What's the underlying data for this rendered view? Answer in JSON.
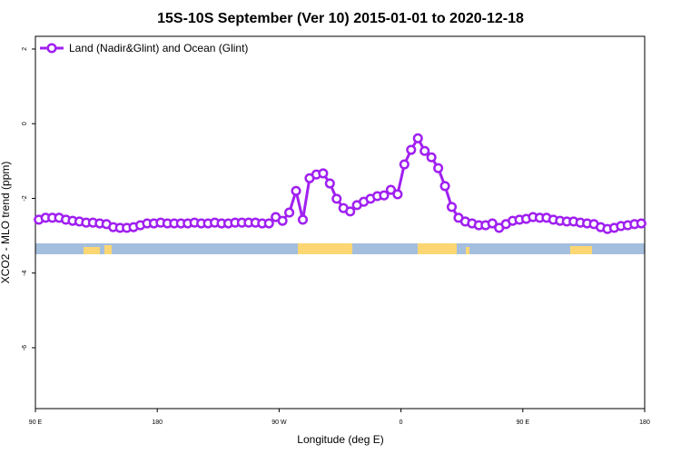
{
  "chart_data": {
    "type": "line",
    "title": "15S-10S September (Ver 10)   2015-01-01 to 2020-12-18",
    "x_label": "Longitude (deg E)",
    "y_label": "XCO2 - MLO trend (ppm)",
    "x": [
      92.5,
      97.5,
      102.5,
      107.5,
      112.5,
      117.5,
      122.5,
      127.5,
      132.5,
      137.5,
      142.5,
      147.5,
      152.5,
      157.5,
      162.5,
      167.5,
      172.5,
      177.5,
      182.5,
      187.5,
      192.5,
      197.5,
      202.5,
      207.5,
      212.5,
      217.5,
      222.5,
      227.5,
      232.5,
      237.5,
      242.5,
      247.5,
      252.5,
      257.5,
      262.5,
      267.5,
      272.5,
      277.5,
      282.5,
      287.5,
      292.5,
      297.5,
      302.5,
      307.5,
      312.5,
      317.5,
      322.5,
      327.5,
      332.5,
      337.5,
      342.5,
      347.5,
      352.5,
      357.5,
      362.5,
      367.5,
      372.5,
      377.5,
      382.5,
      387.5,
      392.5,
      397.5,
      402.5,
      407.5,
      412.5,
      417.5,
      422.5,
      427.5,
      432.5,
      437.5,
      442.5,
      447.5,
      452.5,
      457.5,
      462.5,
      467.5,
      472.5,
      477.5,
      482.5,
      487.5,
      492.5,
      497.5,
      502.5,
      507.5,
      512.5,
      517.5,
      522.5,
      527.5,
      532.5,
      537.5
    ],
    "series": [
      {
        "name": "Land (Nadir&Glint) and Ocean (Glint)",
        "color": "#a020f0",
        "values": [
          -2.57,
          -2.52,
          -2.52,
          -2.52,
          -2.57,
          -2.6,
          -2.62,
          -2.65,
          -2.65,
          -2.67,
          -2.69,
          -2.77,
          -2.79,
          -2.79,
          -2.77,
          -2.72,
          -2.67,
          -2.67,
          -2.65,
          -2.67,
          -2.67,
          -2.67,
          -2.67,
          -2.65,
          -2.67,
          -2.67,
          -2.65,
          -2.67,
          -2.67,
          -2.65,
          -2.65,
          -2.65,
          -2.65,
          -2.67,
          -2.67,
          -2.5,
          -2.6,
          -2.38,
          -1.8,
          -2.57,
          -1.46,
          -1.36,
          -1.33,
          -1.6,
          -2.01,
          -2.26,
          -2.35,
          -2.18,
          -2.09,
          -2.01,
          -1.94,
          -1.92,
          -1.77,
          -1.89,
          -1.09,
          -0.7,
          -0.39,
          -0.73,
          -0.9,
          -1.19,
          -1.67,
          -2.23,
          -2.52,
          -2.62,
          -2.67,
          -2.72,
          -2.72,
          -2.67,
          -2.79,
          -2.69,
          -2.6,
          -2.57,
          -2.55,
          -2.5,
          -2.52,
          -2.52,
          -2.57,
          -2.6,
          -2.62,
          -2.62,
          -2.65,
          -2.67,
          -2.69,
          -2.77,
          -2.82,
          -2.79,
          -2.74,
          -2.72,
          -2.69,
          -2.67
        ]
      }
    ],
    "xlim": [
      90,
      540
    ],
    "xticks": [
      {
        "value": 90,
        "label": "90 E"
      },
      180,
      {
        "value": 270,
        "label": "90 W"
      },
      {
        "value": 360,
        "label": "0"
      },
      {
        "value": 450,
        "label": "90 E"
      },
      {
        "value": 540,
        "label": "180"
      }
    ],
    "ylim": [
      -7.63,
      2.34
    ],
    "yticks": [
      2,
      0,
      -2,
      -4,
      -6
    ],
    "legend": "top-left"
  }
}
